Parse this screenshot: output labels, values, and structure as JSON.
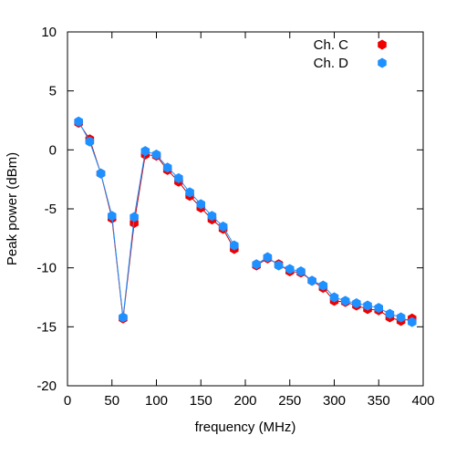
{
  "chart_data": {
    "type": "line",
    "xlabel": "frequency (MHz)",
    "ylabel": "Peak power (dBm)",
    "xlim": [
      0,
      400
    ],
    "ylim": [
      -20,
      10
    ],
    "x_ticks": [
      0,
      50,
      100,
      150,
      200,
      250,
      300,
      350,
      400
    ],
    "y_ticks": [
      -20,
      -15,
      -10,
      -5,
      0,
      5,
      10
    ],
    "legend_position": "top-right",
    "grid": false,
    "series": [
      {
        "name": "Ch. C",
        "color": "#ee0000",
        "line_color": "#cc0000",
        "segments": [
          [
            [
              12.5,
              2.3
            ],
            [
              25,
              0.9
            ],
            [
              37.5,
              -2.0
            ],
            [
              50,
              -5.8
            ],
            [
              62.5,
              -14.3
            ],
            [
              75,
              -6.2
            ],
            [
              87.5,
              -0.4
            ],
            [
              100,
              -0.5
            ],
            [
              112.5,
              -1.7
            ],
            [
              125,
              -2.7
            ],
            [
              137.5,
              -3.9
            ],
            [
              150,
              -4.9
            ],
            [
              162.5,
              -5.9
            ],
            [
              175,
              -6.7
            ],
            [
              187.5,
              -8.4
            ]
          ],
          [
            [
              212.5,
              -9.8
            ],
            [
              225,
              -9.2
            ],
            [
              237.5,
              -9.7
            ],
            [
              250,
              -10.3
            ],
            [
              262.5,
              -10.4
            ],
            [
              275,
              -11.1
            ],
            [
              287.5,
              -11.7
            ],
            [
              300,
              -12.8
            ],
            [
              312.5,
              -12.9
            ],
            [
              325,
              -13.2
            ],
            [
              337.5,
              -13.5
            ],
            [
              350,
              -13.6
            ],
            [
              362.5,
              -14.2
            ],
            [
              375,
              -14.5
            ],
            [
              387.5,
              -14.3
            ]
          ]
        ]
      },
      {
        "name": "Ch. D",
        "color": "#1e90ff",
        "line_color": "#1e90ff",
        "segments": [
          [
            [
              12.5,
              2.4
            ],
            [
              25,
              0.7
            ],
            [
              37.5,
              -2.0
            ],
            [
              50,
              -5.6
            ],
            [
              62.5,
              -14.2
            ],
            [
              75,
              -5.7
            ],
            [
              87.5,
              -0.1
            ],
            [
              100,
              -0.4
            ],
            [
              112.5,
              -1.5
            ],
            [
              125,
              -2.4
            ],
            [
              137.5,
              -3.6
            ],
            [
              150,
              -4.6
            ],
            [
              162.5,
              -5.6
            ],
            [
              175,
              -6.5
            ],
            [
              187.5,
              -8.1
            ]
          ],
          [
            [
              212.5,
              -9.7
            ],
            [
              225,
              -9.1
            ],
            [
              237.5,
              -9.8
            ],
            [
              250,
              -10.1
            ],
            [
              262.5,
              -10.3
            ],
            [
              275,
              -11.1
            ],
            [
              287.5,
              -11.5
            ],
            [
              300,
              -12.5
            ],
            [
              312.5,
              -12.8
            ],
            [
              325,
              -13.0
            ],
            [
              337.5,
              -13.2
            ],
            [
              350,
              -13.4
            ],
            [
              362.5,
              -13.9
            ],
            [
              375,
              -14.2
            ],
            [
              387.5,
              -14.6
            ]
          ]
        ]
      }
    ]
  }
}
